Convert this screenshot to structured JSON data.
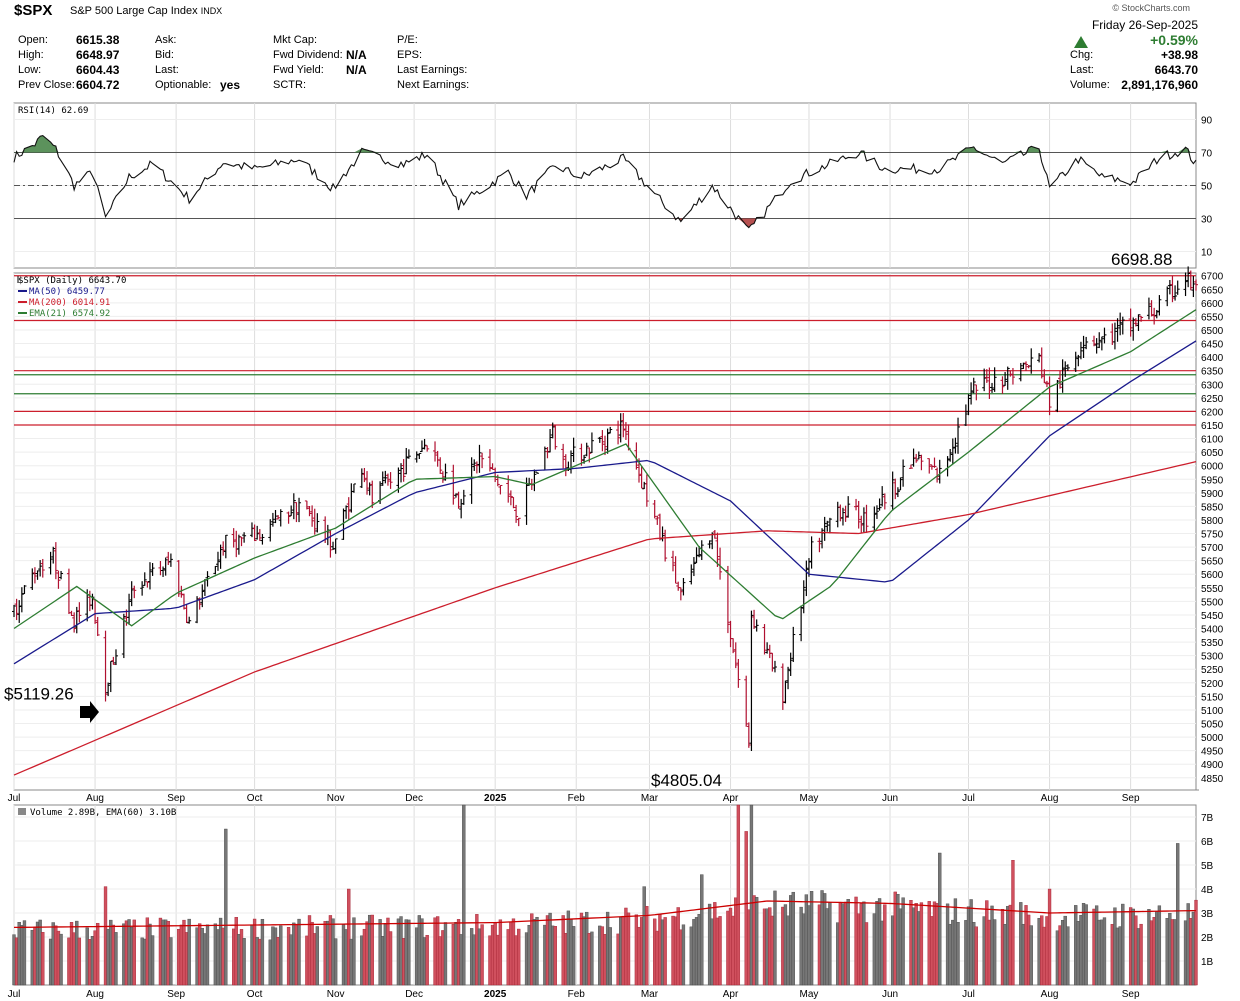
{
  "header": {
    "symbol": "$SPX",
    "description": "S&P 500 Large Cap Index",
    "exchange": "INDX",
    "watermark": "© StockCharts.com",
    "date": "Friday   26-Sep-2025",
    "pct_change": "+0.59%",
    "fields_left": [
      {
        "label": "Open:",
        "value": "6615.38"
      },
      {
        "label": "High:",
        "value": "6648.97"
      },
      {
        "label": "Low:",
        "value": "6604.43"
      },
      {
        "label": "Prev Close:",
        "value": "6604.72"
      }
    ],
    "fields_mid": [
      {
        "label": "Ask:",
        "value": ""
      },
      {
        "label": "Bid:",
        "value": ""
      },
      {
        "label": "Last:",
        "value": ""
      },
      {
        "label": "Optionable:",
        "value": "yes"
      }
    ],
    "fields_mid2": [
      {
        "label": "Mkt Cap:",
        "value": ""
      },
      {
        "label": "Fwd Dividend:",
        "value": "N/A"
      },
      {
        "label": "Fwd Yield:",
        "value": "N/A"
      },
      {
        "label": "SCTR:",
        "value": ""
      }
    ],
    "fields_mid3": [
      {
        "label": "P/E:",
        "value": ""
      },
      {
        "label": "EPS:",
        "value": ""
      },
      {
        "label": "Last Earnings:",
        "value": ""
      },
      {
        "label": "Next Earnings:",
        "value": ""
      }
    ],
    "fields_right": [
      {
        "label": "Chg:",
        "value": "+38.98"
      },
      {
        "label": "Last:",
        "value": "6643.70"
      },
      {
        "label": "Volume:",
        "value": "2,891,176,960"
      }
    ],
    "up_color": "#2e7d32"
  },
  "chart_data": [
    {
      "type": "line",
      "title": "RSI(14) 62.69",
      "ylim": [
        0,
        100
      ],
      "y_ticks": [
        10,
        30,
        50,
        70,
        90
      ],
      "reference_lines": [
        30,
        50,
        70
      ],
      "anchors": [
        {
          "x": "2024-07-01",
          "y": 67
        },
        {
          "x": "2024-07-09",
          "y": 75
        },
        {
          "x": "2024-07-12",
          "y": 80
        },
        {
          "x": "2024-07-17",
          "y": 72
        },
        {
          "x": "2024-07-24",
          "y": 50
        },
        {
          "x": "2024-07-31",
          "y": 58
        },
        {
          "x": "2024-08-05",
          "y": 30
        },
        {
          "x": "2024-08-14",
          "y": 55
        },
        {
          "x": "2024-08-23",
          "y": 63
        },
        {
          "x": "2024-09-06",
          "y": 42
        },
        {
          "x": "2024-09-19",
          "y": 64
        },
        {
          "x": "2024-10-01",
          "y": 60
        },
        {
          "x": "2024-10-18",
          "y": 66
        },
        {
          "x": "2024-10-31",
          "y": 48
        },
        {
          "x": "2024-11-11",
          "y": 70
        },
        {
          "x": "2024-11-27",
          "y": 63
        },
        {
          "x": "2024-12-06",
          "y": 69
        },
        {
          "x": "2024-12-18",
          "y": 38
        },
        {
          "x": "2025-01-06",
          "y": 58
        },
        {
          "x": "2025-01-13",
          "y": 44
        },
        {
          "x": "2025-01-24",
          "y": 62
        },
        {
          "x": "2025-02-03",
          "y": 55
        },
        {
          "x": "2025-02-19",
          "y": 66
        },
        {
          "x": "2025-03-04",
          "y": 43
        },
        {
          "x": "2025-03-13",
          "y": 28
        },
        {
          "x": "2025-03-25",
          "y": 50
        },
        {
          "x": "2025-04-08",
          "y": 22
        },
        {
          "x": "2025-04-24",
          "y": 53
        },
        {
          "x": "2025-05-12",
          "y": 65
        },
        {
          "x": "2025-05-20",
          "y": 70
        },
        {
          "x": "2025-05-30",
          "y": 60
        },
        {
          "x": "2025-06-20",
          "y": 60
        },
        {
          "x": "2025-07-03",
          "y": 73
        },
        {
          "x": "2025-07-14",
          "y": 63
        },
        {
          "x": "2025-07-28",
          "y": 73
        },
        {
          "x": "2025-08-01",
          "y": 48
        },
        {
          "x": "2025-08-12",
          "y": 66
        },
        {
          "x": "2025-08-21",
          "y": 55
        },
        {
          "x": "2025-09-02",
          "y": 52
        },
        {
          "x": "2025-09-12",
          "y": 67
        },
        {
          "x": "2025-09-22",
          "y": 72
        },
        {
          "x": "2025-09-26",
          "y": 62.69
        }
      ]
    },
    {
      "type": "ohlc",
      "title": "$SPX (Daily) 6643.70",
      "x_range": [
        "2024-07-01",
        "2025-09-26"
      ],
      "ylim": [
        4805,
        6710
      ],
      "y_ticks": [
        4850,
        4900,
        4950,
        5000,
        5050,
        5100,
        5150,
        5200,
        5250,
        5300,
        5350,
        5400,
        5450,
        5500,
        5550,
        5600,
        5650,
        5700,
        5750,
        5800,
        5850,
        5900,
        5950,
        6000,
        6050,
        6100,
        6150,
        6200,
        6250,
        6300,
        6350,
        6400,
        6450,
        6500,
        6550,
        6600,
        6650,
        6700
      ],
      "x_ticks": [
        {
          "label": "Jul",
          "date": "2024-07-01"
        },
        {
          "label": "Aug",
          "date": "2024-08-01"
        },
        {
          "label": "Sep",
          "date": "2024-09-01"
        },
        {
          "label": "Oct",
          "date": "2024-10-01"
        },
        {
          "label": "Nov",
          "date": "2024-11-01"
        },
        {
          "label": "Dec",
          "date": "2024-12-01"
        },
        {
          "label": "2025",
          "date": "2025-01-01",
          "bold": true
        },
        {
          "label": "Feb",
          "date": "2025-02-01"
        },
        {
          "label": "Mar",
          "date": "2025-03-01"
        },
        {
          "label": "Apr",
          "date": "2025-04-01"
        },
        {
          "label": "May",
          "date": "2025-05-01"
        },
        {
          "label": "Jun",
          "date": "2025-06-01"
        },
        {
          "label": "Jul",
          "date": "2025-07-01"
        },
        {
          "label": "Aug",
          "date": "2025-08-01"
        },
        {
          "label": "Sep",
          "date": "2025-09-01"
        }
      ],
      "price_anchors": [
        {
          "x": "2024-07-01",
          "y": 5470
        },
        {
          "x": "2024-07-10",
          "y": 5630
        },
        {
          "x": "2024-07-16",
          "y": 5667
        },
        {
          "x": "2024-07-24",
          "y": 5430
        },
        {
          "x": "2024-07-31",
          "y": 5520
        },
        {
          "x": "2024-08-05",
          "y": 5186
        },
        {
          "x": "2024-08-16",
          "y": 5555
        },
        {
          "x": "2024-08-30",
          "y": 5648
        },
        {
          "x": "2024-09-06",
          "y": 5420
        },
        {
          "x": "2024-09-19",
          "y": 5710
        },
        {
          "x": "2024-10-04",
          "y": 5750
        },
        {
          "x": "2024-10-18",
          "y": 5865
        },
        {
          "x": "2024-10-31",
          "y": 5705
        },
        {
          "x": "2024-11-11",
          "y": 6001
        },
        {
          "x": "2024-11-15",
          "y": 5870
        },
        {
          "x": "2024-12-06",
          "y": 6090
        },
        {
          "x": "2024-12-18",
          "y": 5872
        },
        {
          "x": "2024-12-26",
          "y": 6037
        },
        {
          "x": "2025-01-10",
          "y": 5827
        },
        {
          "x": "2025-01-23",
          "y": 6118
        },
        {
          "x": "2025-01-27",
          "y": 6012
        },
        {
          "x": "2025-02-19",
          "y": 6144
        },
        {
          "x": "2025-03-13",
          "y": 5521
        },
        {
          "x": "2025-03-25",
          "y": 5776
        },
        {
          "x": "2025-04-08",
          "y": 4982
        },
        {
          "x": "2025-04-09",
          "y": 5456
        },
        {
          "x": "2025-04-21",
          "y": 5158
        },
        {
          "x": "2025-05-02",
          "y": 5686
        },
        {
          "x": "2025-05-12",
          "y": 5844
        },
        {
          "x": "2025-05-23",
          "y": 5802
        },
        {
          "x": "2025-06-11",
          "y": 6022
        },
        {
          "x": "2025-06-20",
          "y": 5967
        },
        {
          "x": "2025-07-03",
          "y": 6279
        },
        {
          "x": "2025-07-28",
          "y": 6390
        },
        {
          "x": "2025-08-01",
          "y": 6238
        },
        {
          "x": "2025-08-14",
          "y": 6469
        },
        {
          "x": "2025-08-22",
          "y": 6466
        },
        {
          "x": "2025-09-12",
          "y": 6584
        },
        {
          "x": "2025-09-22",
          "y": 6693
        },
        {
          "x": "2025-09-26",
          "y": 6643.7
        }
      ],
      "overlays": [
        {
          "name": "MA(50)",
          "last": "6459.77",
          "color": "#1a1a8c",
          "anchors": [
            {
              "x": "2024-07-01",
              "y": 5270
            },
            {
              "x": "2024-08-01",
              "y": 5455
            },
            {
              "x": "2024-09-01",
              "y": 5475
            },
            {
              "x": "2024-10-01",
              "y": 5580
            },
            {
              "x": "2024-11-01",
              "y": 5750
            },
            {
              "x": "2024-12-01",
              "y": 5900
            },
            {
              "x": "2025-01-01",
              "y": 5975
            },
            {
              "x": "2025-02-01",
              "y": 5990
            },
            {
              "x": "2025-03-01",
              "y": 6020
            },
            {
              "x": "2025-04-01",
              "y": 5870
            },
            {
              "x": "2025-05-01",
              "y": 5600
            },
            {
              "x": "2025-06-01",
              "y": 5570
            },
            {
              "x": "2025-07-01",
              "y": 5800
            },
            {
              "x": "2025-08-01",
              "y": 6110
            },
            {
              "x": "2025-09-01",
              "y": 6310
            },
            {
              "x": "2025-09-26",
              "y": 6459.77
            }
          ]
        },
        {
          "name": "MA(200)",
          "last": "6014.91",
          "color": "#cc1e2c",
          "anchors": [
            {
              "x": "2024-07-01",
              "y": 4860
            },
            {
              "x": "2024-10-01",
              "y": 5240
            },
            {
              "x": "2025-01-01",
              "y": 5550
            },
            {
              "x": "2025-03-01",
              "y": 5730
            },
            {
              "x": "2025-04-15",
              "y": 5760
            },
            {
              "x": "2025-05-20",
              "y": 5750
            },
            {
              "x": "2025-07-01",
              "y": 5820
            },
            {
              "x": "2025-09-26",
              "y": 6014.91
            }
          ]
        },
        {
          "name": "EMA(21)",
          "last": "6574.92",
          "color": "#2e7d32",
          "anchors": [
            {
              "x": "2024-07-01",
              "y": 5400
            },
            {
              "x": "2024-07-25",
              "y": 5555
            },
            {
              "x": "2024-08-15",
              "y": 5410
            },
            {
              "x": "2024-09-01",
              "y": 5530
            },
            {
              "x": "2024-10-01",
              "y": 5660
            },
            {
              "x": "2024-11-01",
              "y": 5770
            },
            {
              "x": "2024-12-01",
              "y": 5950
            },
            {
              "x": "2025-01-01",
              "y": 5960
            },
            {
              "x": "2025-01-15",
              "y": 5930
            },
            {
              "x": "2025-02-20",
              "y": 6080
            },
            {
              "x": "2025-03-20",
              "y": 5700
            },
            {
              "x": "2025-04-20",
              "y": 5430
            },
            {
              "x": "2025-05-10",
              "y": 5560
            },
            {
              "x": "2025-06-01",
              "y": 5830
            },
            {
              "x": "2025-07-01",
              "y": 6050
            },
            {
              "x": "2025-08-01",
              "y": 6290
            },
            {
              "x": "2025-09-01",
              "y": 6420
            },
            {
              "x": "2025-09-26",
              "y": 6574.92
            }
          ]
        }
      ],
      "horizontal_lines": [
        {
          "y": 6700,
          "color": "#cc1e2c"
        },
        {
          "y": 6535,
          "color": "#cc1e2c"
        },
        {
          "y": 6350,
          "color": "#cc1e2c"
        },
        {
          "y": 6200,
          "color": "#cc1e2c"
        },
        {
          "y": 6150,
          "color": "#cc1e2c"
        },
        {
          "y": 6335,
          "color": "#2e7d32"
        },
        {
          "y": 6265,
          "color": "#2e7d32"
        }
      ],
      "annotations": {
        "high_label": "6698.88",
        "left_label": "$5119.26",
        "low_label": "$4805.04"
      }
    },
    {
      "type": "bar",
      "title": "Volume 2.89B, EMA(60) 3.10B",
      "ylim": [
        0,
        7.5
      ],
      "y_ticks": [
        {
          "v": 1,
          "label": "1B"
        },
        {
          "v": 2,
          "label": "2B"
        },
        {
          "v": 3,
          "label": "3B"
        },
        {
          "v": 4,
          "label": "4B"
        },
        {
          "v": 5,
          "label": "5B"
        },
        {
          "v": 6,
          "label": "6B"
        },
        {
          "v": 7,
          "label": "7B"
        }
      ],
      "base_level": 3.0,
      "spikes": [
        {
          "x": "2024-08-05",
          "y": 4.1
        },
        {
          "x": "2024-09-20",
          "y": 6.5
        },
        {
          "x": "2024-11-06",
          "y": 4.0
        },
        {
          "x": "2024-12-20",
          "y": 7.9
        },
        {
          "x": "2025-02-27",
          "y": 4.1
        },
        {
          "x": "2025-03-21",
          "y": 4.6
        },
        {
          "x": "2025-04-04",
          "y": 7.8
        },
        {
          "x": "2025-04-07",
          "y": 6.4
        },
        {
          "x": "2025-04-09",
          "y": 7.6
        },
        {
          "x": "2025-06-20",
          "y": 5.5
        },
        {
          "x": "2025-07-18",
          "y": 5.2
        },
        {
          "x": "2025-08-01",
          "y": 4.0
        },
        {
          "x": "2025-09-19",
          "y": 5.9
        }
      ],
      "ema_anchors": [
        {
          "x": "2024-07-01",
          "y": 2.4
        },
        {
          "x": "2024-10-01",
          "y": 2.5
        },
        {
          "x": "2025-01-01",
          "y": 2.6
        },
        {
          "x": "2025-03-01",
          "y": 2.9
        },
        {
          "x": "2025-04-15",
          "y": 3.5
        },
        {
          "x": "2025-06-01",
          "y": 3.4
        },
        {
          "x": "2025-08-01",
          "y": 3.0
        },
        {
          "x": "2025-09-26",
          "y": 3.1
        }
      ]
    }
  ]
}
